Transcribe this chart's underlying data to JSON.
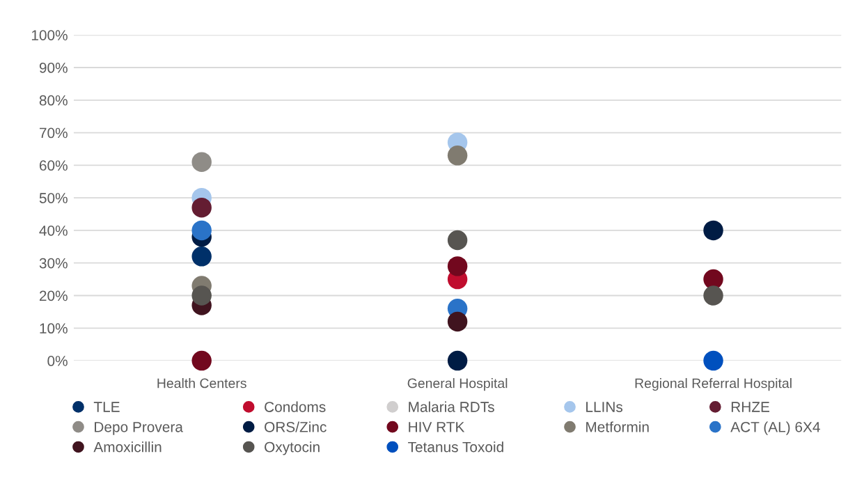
{
  "chart_data": {
    "type": "scatter",
    "categories": [
      "Health Centers",
      "General Hospital",
      "Regional Referral Hospital"
    ],
    "ylim": [
      0,
      100
    ],
    "yticks": [
      {
        "value": 0,
        "label": "0%"
      },
      {
        "value": 10,
        "label": "10%"
      },
      {
        "value": 20,
        "label": "20%"
      },
      {
        "value": 30,
        "label": "30%"
      },
      {
        "value": 40,
        "label": "40%"
      },
      {
        "value": 50,
        "label": "50%"
      },
      {
        "value": 60,
        "label": "60%"
      },
      {
        "value": 70,
        "label": "70%"
      },
      {
        "value": 80,
        "label": "80%"
      },
      {
        "value": 90,
        "label": "90%"
      },
      {
        "value": 100,
        "label": "100%"
      }
    ],
    "grid": "y",
    "legend": "bottom",
    "marker": "circle",
    "series": [
      {
        "name": "TLE",
        "color": "#003069",
        "values": [
          32,
          null,
          null
        ]
      },
      {
        "name": "Condoms",
        "color": "#c00d2e",
        "values": [
          null,
          25,
          null
        ]
      },
      {
        "name": "Malaria RDTs",
        "color": "#d0cece",
        "values": [
          null,
          null,
          null
        ]
      },
      {
        "name": "LLINs",
        "color": "#a5c6ec",
        "values": [
          50,
          67,
          null
        ]
      },
      {
        "name": "RHZE",
        "color": "#641d32",
        "values": [
          47,
          null,
          null
        ]
      },
      {
        "name": "Depo Provera",
        "color": "#8f8c87",
        "values": [
          61,
          null,
          null
        ]
      },
      {
        "name": "ORS/Zinc",
        "color": "#001c44",
        "values": [
          38,
          0,
          40
        ]
      },
      {
        "name": "HIV RTK",
        "color": "#72081e",
        "values": [
          0,
          29,
          25
        ]
      },
      {
        "name": "Metformin",
        "color": "#807b70",
        "values": [
          23,
          63,
          null
        ]
      },
      {
        "name": "ACT (AL) 6X4",
        "color": "#2a73c8",
        "values": [
          40,
          16,
          null
        ]
      },
      {
        "name": "Amoxicillin",
        "color": "#40141f",
        "values": [
          17,
          12,
          null
        ]
      },
      {
        "name": "Oxytocin",
        "color": "#575551",
        "values": [
          20,
          37,
          20
        ]
      },
      {
        "name": "Tetanus Toxoid",
        "color": "#0050be",
        "values": [
          null,
          null,
          0
        ]
      }
    ]
  }
}
